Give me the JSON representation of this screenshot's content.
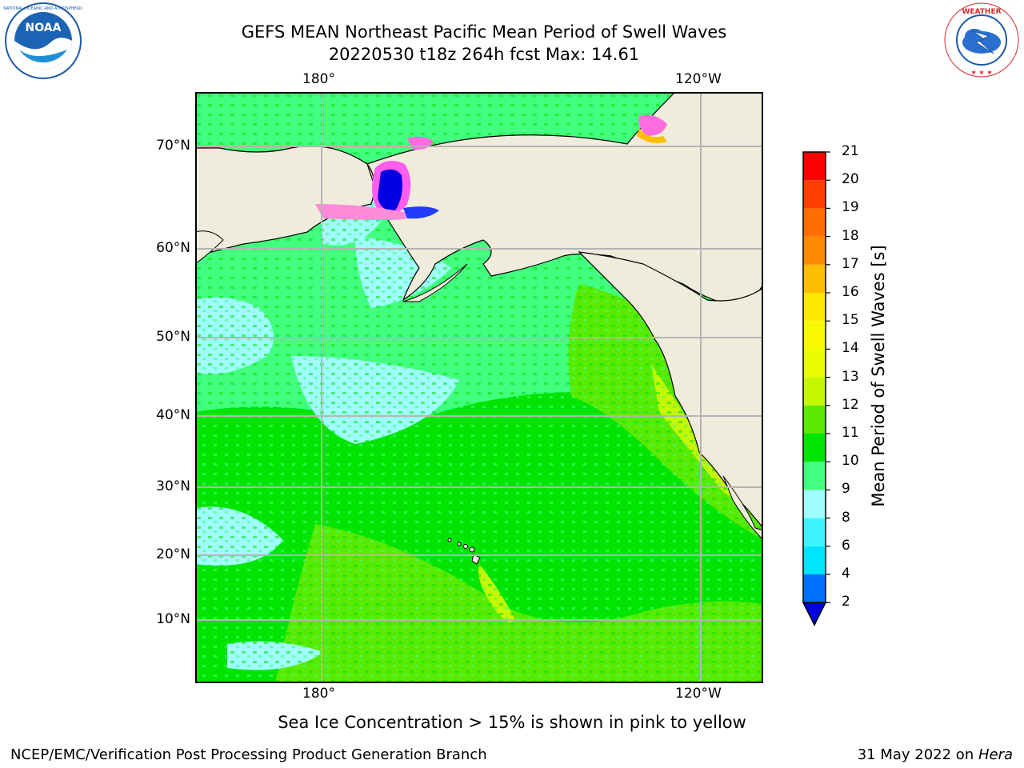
{
  "header": {
    "line1": "GEFS MEAN Northeast Pacific Mean Period of Swell Waves",
    "line2": "20220530 t18z 264h fcst   Max: 14.61"
  },
  "map": {
    "lon_labels_top": [
      "180°",
      "120°W"
    ],
    "lon_labels_bottom": [
      "180°",
      "120°W"
    ],
    "lat_labels": [
      "70°N",
      "60°N",
      "50°N",
      "40°N",
      "30°N",
      "20°N",
      "10°N"
    ],
    "colors": {
      "land": "#efecdc",
      "grid": "#b4b4b4",
      "coast": "#000000"
    }
  },
  "colorbar": {
    "title": "Mean Period of Swell Waves [s]",
    "levels": [
      "2",
      "4",
      "6",
      "8",
      "9",
      "10",
      "11",
      "12",
      "13",
      "14",
      "15",
      "16",
      "17",
      "18",
      "19",
      "20",
      "21"
    ],
    "colors": [
      "#0070ff",
      "#00e5ff",
      "#3bf4ff",
      "#a0fdff",
      "#42ff7f",
      "#00e500",
      "#5aea00",
      "#c4f700",
      "#eafc00",
      "#f8f800",
      "#ffe800",
      "#ffbe00",
      "#ff8a00",
      "#ff6c00",
      "#ff3e00",
      "#ff0000"
    ],
    "extend_below_color": "#0000e0"
  },
  "footer": {
    "sea_ice_note": "Sea Ice Concentration > 15% is shown in pink to yellow",
    "left": "NCEP/EMC/Verification Post Processing Product Generation Branch",
    "right_date": "31 May 2022 on ",
    "right_machine": "Hera"
  },
  "logos": {
    "left": "NOAA",
    "right": "NATIONAL WEATHER SERVICE"
  }
}
